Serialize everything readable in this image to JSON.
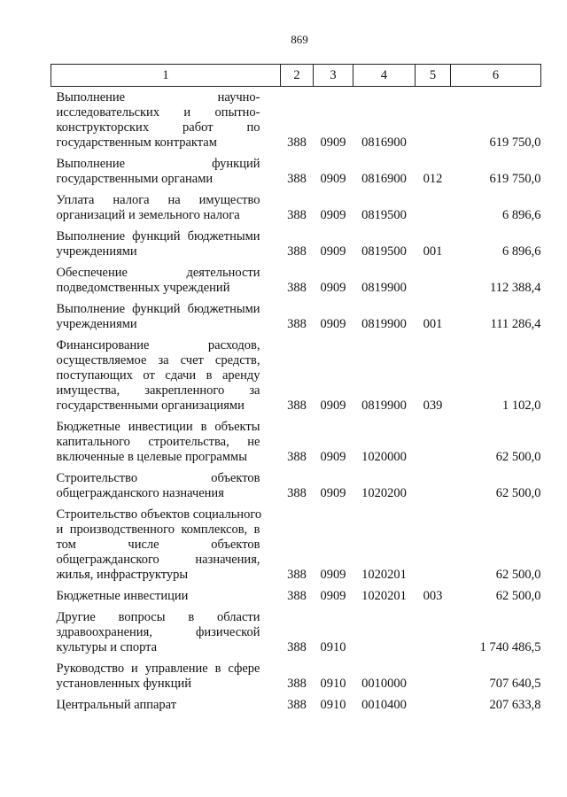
{
  "page_number": "869",
  "table": {
    "headers": [
      "1",
      "2",
      "3",
      "4",
      "5",
      "6"
    ],
    "rows": [
      {
        "lines": [
          "Выполнение научно-",
          "исследовательских и опытно-",
          "конструкторских работ по",
          "государственным контрактам"
        ],
        "c2": "388",
        "c3": "0909",
        "c4": "0816900",
        "c5": "",
        "c6": "619 750,0"
      },
      {
        "lines": [
          "Выполнение функций",
          "государственными органами"
        ],
        "c2": "388",
        "c3": "0909",
        "c4": "0816900",
        "c5": "012",
        "c6": "619 750,0"
      },
      {
        "lines": [
          "Уплата налога на имущество",
          "организаций и земельного налога"
        ],
        "c2": "388",
        "c3": "0909",
        "c4": "0819500",
        "c5": "",
        "c6": "6 896,6"
      },
      {
        "lines": [
          "Выполнение функций бюджетными",
          "учреждениями"
        ],
        "c2": "388",
        "c3": "0909",
        "c4": "0819500",
        "c5": "001",
        "c6": "6 896,6"
      },
      {
        "lines": [
          "Обеспечение деятельности",
          "подведомственных учреждений"
        ],
        "c2": "388",
        "c3": "0909",
        "c4": "0819900",
        "c5": "",
        "c6": "112 388,4"
      },
      {
        "lines": [
          "Выполнение функций бюджетными",
          "учреждениями"
        ],
        "c2": "388",
        "c3": "0909",
        "c4": "0819900",
        "c5": "001",
        "c6": "111 286,4"
      },
      {
        "lines": [
          "Финансирование расходов,",
          "осуществляемое за счет средств,",
          "поступающих от сдачи в аренду",
          "имущества, закрепленного за",
          "государственными организациями"
        ],
        "c2": "388",
        "c3": "0909",
        "c4": "0819900",
        "c5": "039",
        "c6": "1 102,0"
      },
      {
        "lines": [
          "Бюджетные инвестиции в объекты",
          "капитального строительства, не",
          "включенные в целевые программы"
        ],
        "c2": "388",
        "c3": "0909",
        "c4": "1020000",
        "c5": "",
        "c6": "62 500,0"
      },
      {
        "lines": [
          "Строительство объектов",
          "общегражданского назначения"
        ],
        "c2": "388",
        "c3": "0909",
        "c4": "1020200",
        "c5": "",
        "c6": "62 500,0"
      },
      {
        "lines": [
          "Строительство объектов социального",
          "и производственного комплексов, в",
          "том числе объектов",
          "общегражданского назначения,",
          "жилья, инфраструктуры"
        ],
        "c2": "388",
        "c3": "0909",
        "c4": "1020201",
        "c5": "",
        "c6": "62 500,0"
      },
      {
        "lines": [
          "Бюджетные инвестиции"
        ],
        "c2": "388",
        "c3": "0909",
        "c4": "1020201",
        "c5": "003",
        "c6": "62 500,0"
      },
      {
        "lines": [
          "Другие вопросы в области",
          "здравоохранения, физической",
          "культуры и спорта"
        ],
        "c2": "388",
        "c3": "0910",
        "c4": "",
        "c5": "",
        "c6": "1 740 486,5"
      },
      {
        "lines": [
          "Руководство и управление в сфере",
          "установленных функций"
        ],
        "c2": "388",
        "c3": "0910",
        "c4": "0010000",
        "c5": "",
        "c6": "707 640,5"
      },
      {
        "lines": [
          "Центральный аппарат"
        ],
        "c2": "388",
        "c3": "0910",
        "c4": "0010400",
        "c5": "",
        "c6": "207 633,8"
      }
    ]
  }
}
